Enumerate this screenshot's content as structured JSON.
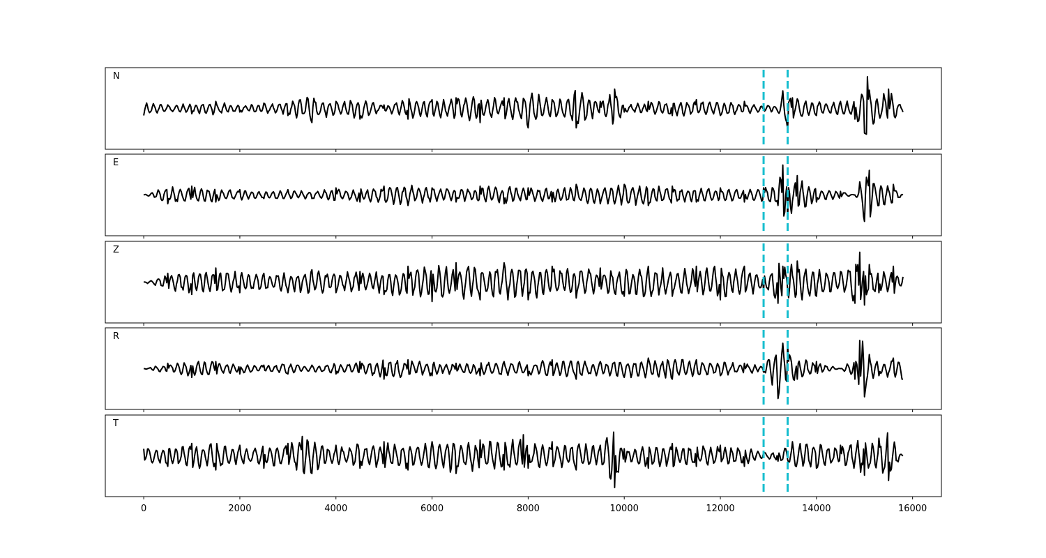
{
  "chart_data": {
    "type": "line",
    "title": "",
    "xlabel": "",
    "ylabel": "",
    "xlim": [
      -800,
      16600
    ],
    "x_ticks": [
      0,
      2000,
      4000,
      6000,
      8000,
      10000,
      12000,
      14000,
      16000
    ],
    "x_tick_labels": [
      "0",
      "2000",
      "4000",
      "6000",
      "8000",
      "10000",
      "12000",
      "14000",
      "16000"
    ],
    "grid": false,
    "markers": {
      "color": "#17becf",
      "style": "dashed",
      "x": [
        12900,
        13400
      ]
    },
    "trace_color": "#000000",
    "panels": [
      {
        "label": "N",
        "ylim": [
          -1,
          1
        ],
        "x": [
          0,
          500,
          1000,
          1500,
          2000,
          2500,
          3000,
          3500,
          4000,
          4500,
          5000,
          5500,
          6000,
          6500,
          7000,
          7500,
          8000,
          8500,
          9000,
          9500,
          9800,
          10000,
          10500,
          11000,
          11500,
          12000,
          12500,
          12900,
          13200,
          13300,
          13400,
          13500,
          14000,
          14500,
          14800,
          15000,
          15060,
          15200,
          15500,
          15800
        ],
        "y": [
          -0.2,
          0.1,
          -0.15,
          0.2,
          -0.1,
          0.15,
          -0.2,
          -0.4,
          0.2,
          -0.3,
          0.1,
          -0.3,
          0.25,
          0.3,
          -0.4,
          0.3,
          -0.55,
          0.25,
          -0.55,
          0.2,
          0.55,
          -0.1,
          0.2,
          -0.2,
          0.25,
          -0.2,
          0.2,
          0.1,
          -0.1,
          0.5,
          -0.6,
          0.3,
          -0.2,
          0.2,
          -0.3,
          -0.7,
          0.9,
          -0.4,
          0.55,
          -0.1
        ]
      },
      {
        "label": "E",
        "ylim": [
          -1,
          1
        ],
        "x": [
          0,
          500,
          1000,
          1500,
          2000,
          2500,
          3000,
          3500,
          4000,
          4500,
          5000,
          5500,
          6000,
          6500,
          7000,
          7500,
          8000,
          8500,
          9000,
          9500,
          10000,
          10500,
          11000,
          11500,
          12000,
          12500,
          12900,
          13200,
          13300,
          13400,
          13600,
          14000,
          14500,
          14800,
          15000,
          15100,
          15300,
          15600,
          15800
        ],
        "y": [
          0.0,
          -0.25,
          0.25,
          -0.2,
          0.15,
          -0.1,
          0.15,
          -0.1,
          0.2,
          -0.2,
          0.25,
          -0.3,
          0.2,
          -0.2,
          0.25,
          -0.25,
          0.2,
          -0.2,
          0.3,
          -0.25,
          0.3,
          -0.3,
          0.25,
          -0.2,
          0.2,
          -0.2,
          0.2,
          -0.3,
          0.85,
          -0.65,
          0.55,
          -0.2,
          0.1,
          0.0,
          -0.75,
          0.7,
          -0.3,
          0.3,
          0.0
        ]
      },
      {
        "label": "Z",
        "ylim": [
          -1,
          1
        ],
        "x": [
          0,
          500,
          1000,
          1500,
          2000,
          2500,
          3000,
          3500,
          4000,
          4500,
          5000,
          5500,
          6000,
          6500,
          7000,
          7500,
          8000,
          8500,
          9000,
          9500,
          10000,
          10500,
          11000,
          11500,
          12000,
          12500,
          12900,
          13200,
          13300,
          13600,
          14000,
          14500,
          14800,
          14900,
          15000,
          15100,
          15300,
          15600,
          15800
        ],
        "y": [
          0.0,
          0.25,
          -0.35,
          0.4,
          -0.3,
          0.25,
          -0.3,
          0.35,
          -0.3,
          0.3,
          -0.35,
          0.45,
          -0.55,
          0.55,
          -0.5,
          0.55,
          -0.5,
          0.45,
          -0.45,
          0.4,
          -0.4,
          0.45,
          -0.4,
          0.45,
          -0.5,
          0.45,
          -0.25,
          -0.6,
          0.45,
          0.6,
          -0.4,
          0.3,
          -0.6,
          0.85,
          -0.65,
          0.5,
          -0.3,
          0.45,
          0.15
        ]
      },
      {
        "label": "R",
        "ylim": [
          -1,
          1
        ],
        "x": [
          0,
          500,
          1000,
          1500,
          2000,
          2500,
          3000,
          3500,
          4000,
          4500,
          5000,
          5500,
          6000,
          6500,
          7000,
          7500,
          8000,
          8500,
          9000,
          9500,
          10000,
          10500,
          11000,
          11500,
          12000,
          12500,
          12900,
          13200,
          13400,
          13600,
          14000,
          14500,
          14800,
          14900,
          15000,
          15100,
          15300,
          15600,
          15800
        ],
        "y": [
          0.0,
          0.15,
          -0.25,
          0.2,
          -0.15,
          0.1,
          -0.15,
          0.1,
          -0.15,
          0.2,
          -0.3,
          0.25,
          -0.2,
          0.15,
          -0.2,
          0.2,
          -0.2,
          0.25,
          -0.3,
          0.2,
          -0.25,
          0.3,
          -0.3,
          0.25,
          -0.2,
          0.15,
          -0.1,
          -0.85,
          0.65,
          -0.3,
          0.2,
          0.0,
          -0.3,
          0.8,
          -0.8,
          0.4,
          -0.2,
          0.3,
          -0.3
        ]
      },
      {
        "label": "T",
        "ylim": [
          -1,
          1
        ],
        "x": [
          0,
          500,
          1000,
          1500,
          2000,
          2500,
          3000,
          3300,
          3500,
          4000,
          4500,
          5000,
          5500,
          6000,
          6500,
          7000,
          7500,
          7900,
          8000,
          8500,
          9000,
          9500,
          9800,
          10000,
          10500,
          11000,
          11500,
          12000,
          12500,
          12900,
          13200,
          13500,
          14000,
          14500,
          15000,
          15300,
          15500,
          15800
        ],
        "y": [
          0.2,
          -0.3,
          0.35,
          -0.4,
          0.3,
          -0.35,
          0.35,
          0.55,
          -0.5,
          0.3,
          -0.35,
          0.4,
          -0.4,
          0.4,
          -0.5,
          0.45,
          -0.4,
          0.6,
          -0.35,
          0.4,
          -0.4,
          0.3,
          -0.9,
          0.2,
          -0.35,
          0.35,
          -0.3,
          0.3,
          -0.3,
          0.1,
          -0.15,
          0.4,
          -0.35,
          0.3,
          -0.55,
          0.5,
          -0.7,
          0.0
        ]
      }
    ]
  }
}
